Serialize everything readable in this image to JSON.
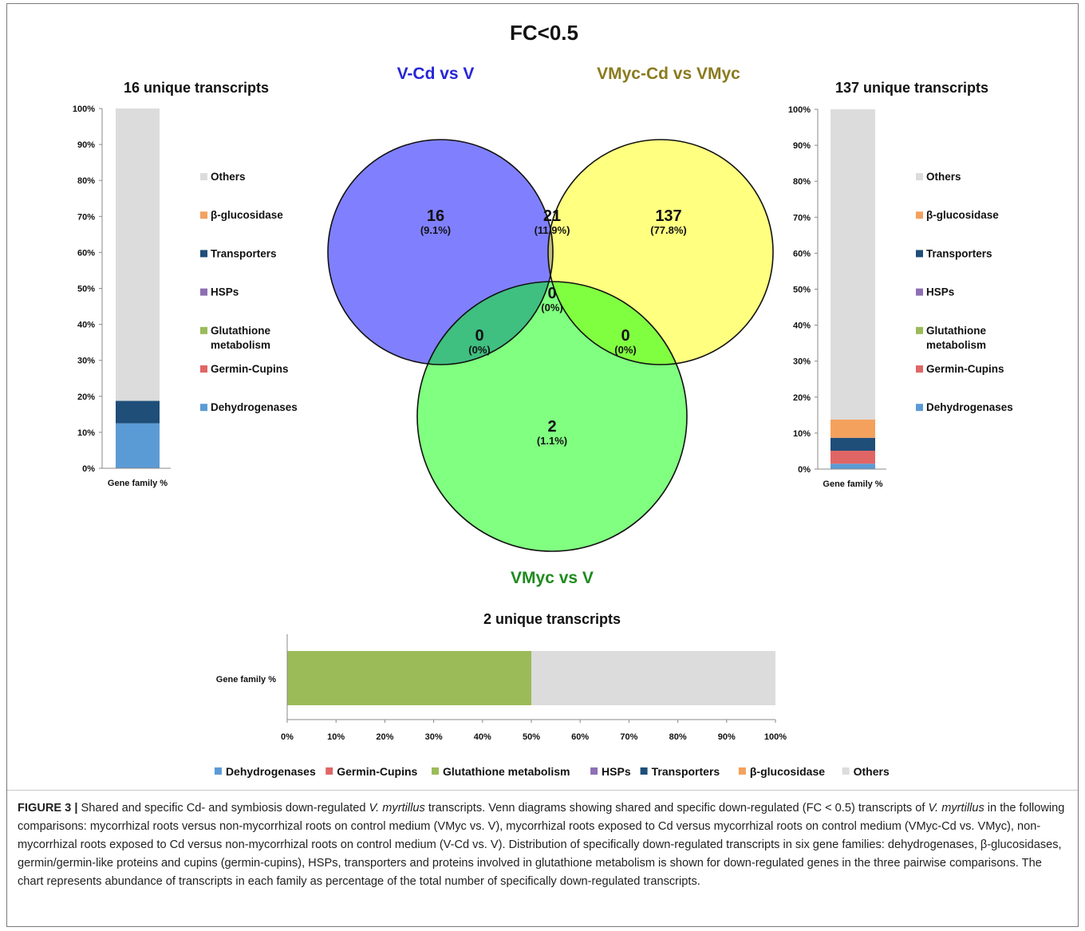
{
  "figure": {
    "main_title": "FC<0.5",
    "venn": {
      "set_labels": [
        {
          "text": "V-Cd vs V",
          "color": "#2626d6"
        },
        {
          "text": "VMyc-Cd vs VMyc",
          "color": "#8a7a1e"
        },
        {
          "text": "VMyc vs V",
          "color": "#1f8a1f"
        }
      ],
      "regions": [
        {
          "key": "v_cd_only",
          "count": "16",
          "pct": "(9.1%)"
        },
        {
          "key": "v_cd_vmyc_cd",
          "count": "21",
          "pct": "(11.9%)"
        },
        {
          "key": "vmyc_cd_only",
          "count": "137",
          "pct": "(77.8%)"
        },
        {
          "key": "all_three",
          "count": "0",
          "pct": "(0%)"
        },
        {
          "key": "v_cd_vmyc",
          "count": "0",
          "pct": "(0%)"
        },
        {
          "key": "vmyc_cd_vmyc",
          "count": "0",
          "pct": "(0%)"
        },
        {
          "key": "vmyc_only",
          "count": "2",
          "pct": "(1.1%)"
        }
      ],
      "fills": {
        "v_cd": "#8080ff",
        "vmyc_cd": "#ffff80",
        "vmyc": "#80ff80",
        "v_cd_vmyc_cd": "#c0bb80",
        "v_cd_vmyc": "#3fbf80",
        "vmyc_cd_vmyc": "#80ff40",
        "all_three": "#5fdf40"
      }
    },
    "families": [
      {
        "name": "Dehydrogenases",
        "color": "#5b9bd5"
      },
      {
        "name": "Germin-Cupins",
        "color": "#e06666"
      },
      {
        "name": "Glutathione metabolism",
        "color": "#9bbb59"
      },
      {
        "name": "HSPs",
        "color": "#8e6fb5"
      },
      {
        "name": "Transporters",
        "color": "#1f4e79"
      },
      {
        "name": "β-glucosidase",
        "color": "#f4a15d"
      },
      {
        "name": "Others",
        "color": "#dcdcdc"
      }
    ],
    "side_legend_labels": [
      "Others",
      "β-glucosidase",
      "Transporters",
      "HSPs",
      "Glutathione metabolism",
      "Germin-Cupins",
      "Dehydrogenases"
    ],
    "side_legend_lines": [
      [
        "Others"
      ],
      [
        "β-glucosidase"
      ],
      [
        "Transporters"
      ],
      [
        "HSPs"
      ],
      [
        "Glutathione",
        "metabolism"
      ],
      [
        "Germin-Cupins"
      ],
      [
        "Dehydrogenases"
      ]
    ]
  },
  "chart_data": [
    {
      "type": "bar",
      "orientation": "vertical-stacked",
      "title": "16 unique transcripts",
      "categories": [
        "Gene family %"
      ],
      "ylim": [
        0,
        100
      ],
      "y_ticks": [
        "0%",
        "10%",
        "20%",
        "30%",
        "40%",
        "50%",
        "60%",
        "70%",
        "80%",
        "90%",
        "100%"
      ],
      "series": [
        {
          "name": "Dehydrogenases",
          "values": [
            12.5
          ]
        },
        {
          "name": "Germin-Cupins",
          "values": [
            0
          ]
        },
        {
          "name": "Glutathione metabolism",
          "values": [
            0
          ]
        },
        {
          "name": "HSPs",
          "values": [
            0
          ]
        },
        {
          "name": "Transporters",
          "values": [
            6.25
          ]
        },
        {
          "name": "β-glucosidase",
          "values": [
            0
          ]
        },
        {
          "name": "Others",
          "values": [
            81.25
          ]
        }
      ]
    },
    {
      "type": "bar",
      "orientation": "vertical-stacked",
      "title": "137 unique transcripts",
      "categories": [
        "Gene family %"
      ],
      "ylim": [
        0,
        100
      ],
      "y_ticks": [
        "0%",
        "10%",
        "20%",
        "30%",
        "40%",
        "50%",
        "60%",
        "70%",
        "80%",
        "90%",
        "100%"
      ],
      "series": [
        {
          "name": "Dehydrogenases",
          "values": [
            1.5
          ]
        },
        {
          "name": "Germin-Cupins",
          "values": [
            3.6
          ]
        },
        {
          "name": "Glutathione metabolism",
          "values": [
            0
          ]
        },
        {
          "name": "HSPs",
          "values": [
            0
          ]
        },
        {
          "name": "Transporters",
          "values": [
            3.6
          ]
        },
        {
          "name": "β-glucosidase",
          "values": [
            5.1
          ]
        },
        {
          "name": "Others",
          "values": [
            86.2
          ]
        }
      ]
    },
    {
      "type": "bar",
      "orientation": "horizontal-stacked",
      "title": "2 unique transcripts",
      "categories": [
        "Gene family %"
      ],
      "xlim": [
        0,
        100
      ],
      "x_ticks": [
        "0%",
        "10%",
        "20%",
        "30%",
        "40%",
        "50%",
        "60%",
        "70%",
        "80%",
        "90%",
        "100%"
      ],
      "legend_position": "bottom",
      "series": [
        {
          "name": "Dehydrogenases",
          "values": [
            0
          ]
        },
        {
          "name": "Germin-Cupins",
          "values": [
            0
          ]
        },
        {
          "name": "Glutathione metabolism",
          "values": [
            50
          ]
        },
        {
          "name": "HSPs",
          "values": [
            0
          ]
        },
        {
          "name": "Transporters",
          "values": [
            0
          ]
        },
        {
          "name": "β-glucosidase",
          "values": [
            0
          ]
        },
        {
          "name": "Others",
          "values": [
            50
          ]
        }
      ]
    }
  ],
  "caption": {
    "label": "FIGURE 3 |",
    "t1": " Shared and specific Cd- and symbiosis down-regulated ",
    "species1": "V. myrtillus",
    "t2": " transcripts. Venn diagrams showing shared and specific down-regulated (FC < 0.5) transcripts of ",
    "species2": "V. myrtillus",
    "t3": " in the following comparisons: mycorrhizal roots versus non-mycorrhizal roots on control medium (VMyc vs. V), mycorrhizal roots exposed to Cd versus mycorrhizal roots on control medium (VMyc-Cd vs. VMyc), non-mycorrhizal roots exposed to Cd versus non-mycorrhizal roots on control medium (V-Cd vs. V). Distribution of specifically down-regulated transcripts in six gene families: dehydrogenases, β-glucosidases, germin/germin-like proteins and cupins (germin-cupins), HSPs, transporters and proteins involved in glutathione metabolism is shown for down-regulated genes in the three pairwise comparisons. The chart represents abundance of transcripts in each family as percentage of the total number of specifically down-regulated transcripts."
  }
}
